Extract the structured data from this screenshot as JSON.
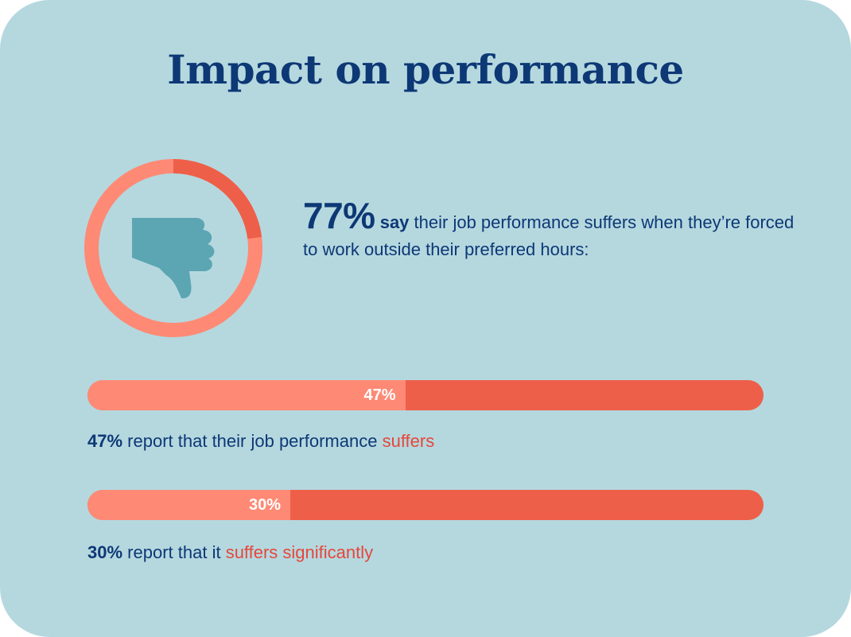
{
  "title": "Impact on performance",
  "headline": {
    "percent": "77%",
    "say": "say",
    "text": "their job performance suffers when they’re forced to work outside their preferred hours:"
  },
  "icon": "thumbs-down-icon",
  "colors": {
    "background": "#b5d8df",
    "navy": "#0d3875",
    "salmon": "#fe8a75",
    "coral": "#ee5f49",
    "highlight": "#e5473a",
    "icon": "#5ba6b2"
  },
  "chart_data": [
    {
      "type": "pie",
      "series": [
        {
          "values": [
            77,
            23
          ]
        }
      ],
      "center_icon": "thumbs-down-icon"
    },
    {
      "type": "bar",
      "orientation": "horizontal-stacked",
      "bars": [
        {
          "value": 47,
          "label": "47%",
          "caption_percent": "47%",
          "caption_text": "report that their job performance",
          "caption_highlight": "suffers"
        },
        {
          "value": 30,
          "label": "30%",
          "caption_percent": "30%",
          "caption_text": "report that it",
          "caption_highlight": "suffers significantly"
        }
      ],
      "xlim": [
        0,
        100
      ]
    }
  ]
}
